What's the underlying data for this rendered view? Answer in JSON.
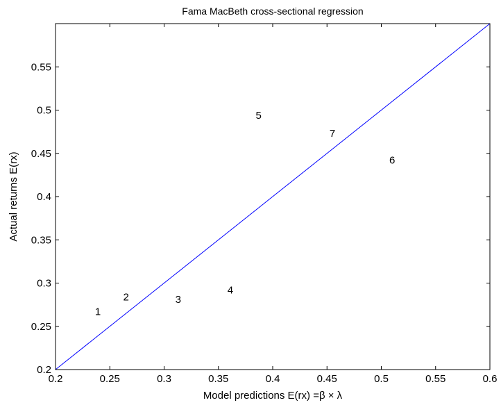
{
  "chart_data": {
    "type": "scatter",
    "title": "Fama MacBeth cross-sectional regression",
    "xlabel": "Model predictions E(rx) =β × λ",
    "ylabel": "Actual returns E(rx)",
    "xlim": [
      0.2,
      0.6
    ],
    "ylim": [
      0.2,
      0.6
    ],
    "xticks": [
      "0.2",
      "0.25",
      "0.3",
      "0.35",
      "0.4",
      "0.45",
      "0.5",
      "0.55",
      "0.6"
    ],
    "yticks": [
      "0.2",
      "0.25",
      "0.3",
      "0.35",
      "0.4",
      "0.45",
      "0.5",
      "0.55"
    ],
    "grid": false,
    "points": [
      {
        "label": "1",
        "x": 0.239,
        "y": 0.267
      },
      {
        "label": "2",
        "x": 0.265,
        "y": 0.284
      },
      {
        "label": "3",
        "x": 0.313,
        "y": 0.281
      },
      {
        "label": "4",
        "x": 0.361,
        "y": 0.292
      },
      {
        "label": "5",
        "x": 0.387,
        "y": 0.494
      },
      {
        "label": "6",
        "x": 0.51,
        "y": 0.442
      },
      {
        "label": "7",
        "x": 0.455,
        "y": 0.473
      }
    ],
    "reference_line": {
      "x": [
        0.2,
        0.6
      ],
      "y": [
        0.2,
        0.6
      ],
      "color": "#0000ff"
    }
  }
}
